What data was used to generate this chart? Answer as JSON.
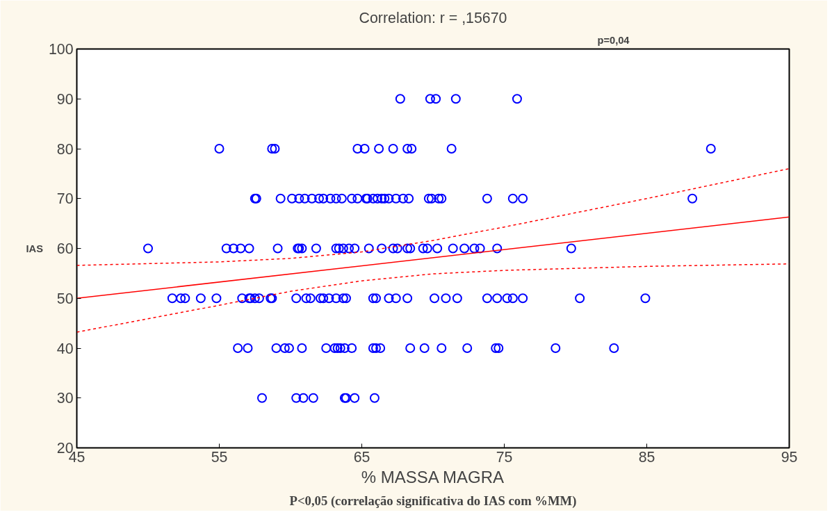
{
  "chart_data": {
    "type": "scatter",
    "title": "Correlation: r = ,15670",
    "xlabel": "% MASSA MAGRA",
    "ylabel": "IAS",
    "annotations": [
      "p=0,04",
      "P<0,05 (correlação significativa do IAS com %MM)"
    ],
    "xlim": [
      45,
      95
    ],
    "ylim": [
      20,
      100
    ],
    "xticks": [
      45,
      55,
      65,
      75,
      85,
      95
    ],
    "yticks": [
      20,
      30,
      40,
      50,
      60,
      70,
      80,
      90,
      100
    ],
    "grid": false,
    "marker": "circle",
    "series": [
      {
        "color": "#0000ff",
        "x": [
          67.7,
          69.8,
          70.2,
          71.6,
          75.9,
          55.0,
          58.7,
          58.9,
          64.7,
          65.2,
          66.2,
          67.2,
          68.2,
          68.5,
          71.3,
          89.5,
          57.5,
          57.6,
          59.3,
          60.1,
          60.6,
          61.0,
          61.5,
          62.0,
          62.3,
          62.8,
          63.2,
          63.6,
          64.3,
          64.7,
          65.3,
          65.4,
          65.8,
          66.1,
          66.4,
          66.6,
          66.9,
          67.4,
          67.9,
          68.3,
          69.7,
          69.9,
          70.4,
          70.6,
          73.8,
          75.6,
          76.3,
          88.2,
          50.0,
          55.5,
          56.0,
          56.5,
          57.1,
          59.1,
          60.5,
          60.6,
          60.8,
          61.8,
          63.2,
          63.4,
          63.7,
          64.1,
          64.5,
          65.5,
          66.4,
          67.2,
          67.5,
          68.2,
          68.4,
          69.3,
          69.6,
          70.3,
          71.4,
          72.2,
          72.9,
          73.3,
          74.5,
          79.7,
          51.7,
          52.3,
          52.6,
          53.7,
          54.8,
          56.6,
          57.1,
          57.2,
          57.5,
          57.8,
          58.6,
          58.7,
          60.4,
          61.1,
          61.4,
          62.1,
          62.3,
          62.7,
          63.2,
          63.7,
          63.9,
          65.8,
          66.0,
          66.9,
          67.4,
          68.2,
          70.1,
          70.9,
          71.7,
          73.8,
          74.5,
          75.2,
          75.6,
          76.3,
          80.3,
          84.9,
          56.3,
          57.0,
          59.0,
          59.6,
          59.9,
          60.8,
          62.5,
          63.1,
          63.3,
          63.5,
          63.8,
          64.3,
          65.8,
          66.0,
          66.3,
          68.4,
          69.4,
          70.6,
          72.4,
          74.4,
          74.6,
          78.6,
          82.7,
          58.0,
          60.4,
          60.9,
          61.6,
          63.8,
          63.9,
          64.5,
          65.9
        ],
        "values": [
          90,
          90,
          90,
          90,
          90,
          80,
          80,
          80,
          80,
          80,
          80,
          80,
          80,
          80,
          80,
          80,
          70,
          70,
          70,
          70,
          70,
          70,
          70,
          70,
          70,
          70,
          70,
          70,
          70,
          70,
          70,
          70,
          70,
          70,
          70,
          70,
          70,
          70,
          70,
          70,
          70,
          70,
          70,
          70,
          70,
          70,
          70,
          70,
          60,
          60,
          60,
          60,
          60,
          60,
          60,
          60,
          60,
          60,
          60,
          60,
          60,
          60,
          60,
          60,
          60,
          60,
          60,
          60,
          60,
          60,
          60,
          60,
          60,
          60,
          60,
          60,
          60,
          60,
          50,
          50,
          50,
          50,
          50,
          50,
          50,
          50,
          50,
          50,
          50,
          50,
          50,
          50,
          50,
          50,
          50,
          50,
          50,
          50,
          50,
          50,
          50,
          50,
          50,
          50,
          50,
          50,
          50,
          50,
          50,
          50,
          50,
          50,
          50,
          50,
          40,
          40,
          40,
          40,
          40,
          40,
          40,
          40,
          40,
          40,
          40,
          40,
          40,
          40,
          40,
          40,
          40,
          40,
          40,
          40,
          40,
          40,
          40,
          30,
          30,
          30,
          30,
          30,
          30,
          30,
          30
        ]
      },
      {
        "type": "line",
        "color": "#ff0000",
        "line_style": "solid",
        "marker": "none",
        "x": [
          45,
          95
        ],
        "values": [
          50,
          66.3
        ]
      },
      {
        "type": "line",
        "color": "#ff0000",
        "line_style": "dashed",
        "marker": "none",
        "x": [
          45,
          55,
          60,
          65,
          70,
          75,
          85,
          95
        ],
        "values": [
          56.6,
          57.3,
          58.0,
          59.3,
          61.6,
          64.3,
          70,
          76
        ]
      },
      {
        "type": "line",
        "color": "#ff0000",
        "line_style": "dashed",
        "marker": "none",
        "x": [
          45,
          55,
          60,
          65,
          70,
          75,
          85,
          95
        ],
        "values": [
          43.2,
          48.6,
          51.4,
          53.5,
          54.9,
          55.6,
          56.4,
          56.9
        ]
      }
    ]
  }
}
